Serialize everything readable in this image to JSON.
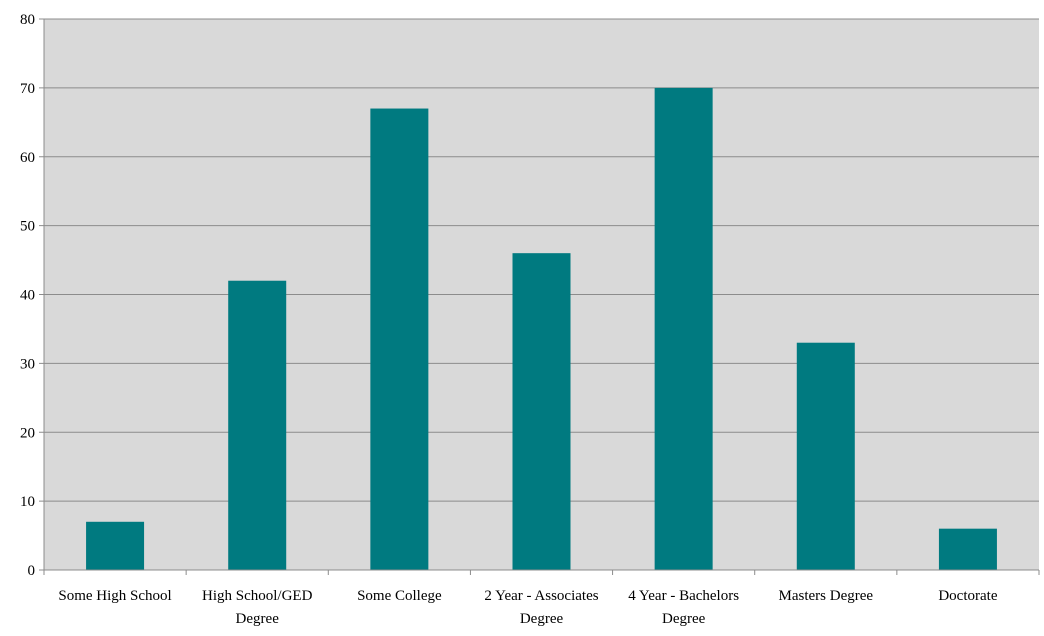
{
  "chart_data": {
    "type": "bar",
    "categories": [
      "Some High School",
      "High School/GED Degree",
      "Some College",
      "2 Year - Associates Degree",
      "4 Year - Bachelors Degree",
      "Masters Degree",
      "Doctorate"
    ],
    "values": [
      7,
      42,
      67,
      46,
      70,
      33,
      6
    ],
    "title": "",
    "xlabel": "",
    "ylabel": "",
    "ylim": [
      0,
      80
    ],
    "yticks": [
      0,
      10,
      20,
      30,
      40,
      50,
      60,
      70,
      80
    ],
    "grid": true,
    "legend": "none",
    "colors": {
      "bar": "#007a80",
      "plot_background": "#d9d9d9",
      "gridline": "#8c8c8c",
      "axis": "#8c8c8c"
    }
  }
}
